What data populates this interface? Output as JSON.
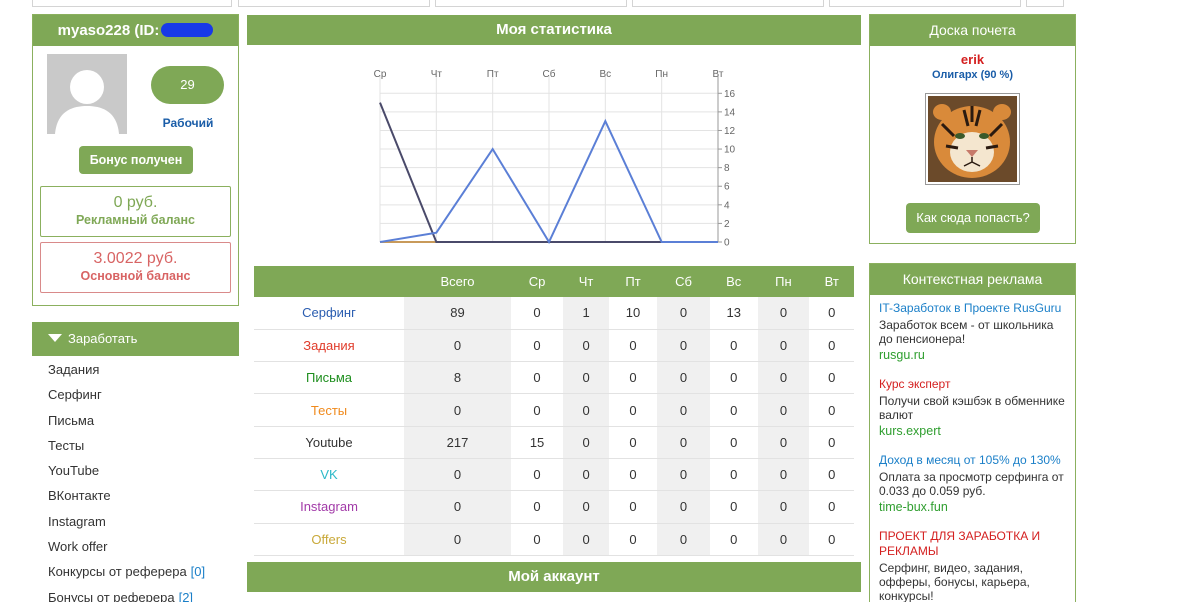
{
  "profile": {
    "username": "myaso228 (ID:",
    "level": "29",
    "level_label": "Рабочий",
    "bonus_button": "Бонус получен",
    "ad_balance_amount": "0 руб.",
    "ad_balance_label": "Рекламный баланс",
    "main_balance_amount": "3.0022 руб.",
    "main_balance_label": "Основной баланс"
  },
  "earn_menu": {
    "title": "Заработать",
    "items": [
      {
        "label": "Задания",
        "count": ""
      },
      {
        "label": "Серфинг",
        "count": ""
      },
      {
        "label": "Письма",
        "count": ""
      },
      {
        "label": "Тесты",
        "count": ""
      },
      {
        "label": "YouTube",
        "count": ""
      },
      {
        "label": "ВКонтакте",
        "count": ""
      },
      {
        "label": "Instagram",
        "count": ""
      },
      {
        "label": "Work offer",
        "count": ""
      },
      {
        "label": "Конкурсы от реферера",
        "count": "[0]"
      },
      {
        "label": "Бонусы от реферера",
        "count": "[2]"
      }
    ]
  },
  "stats_title": "Моя статистика",
  "account_title": "Мой аккаунт",
  "chart_data": {
    "type": "line",
    "categories": [
      "Ср",
      "Чт",
      "Пт",
      "Сб",
      "Вс",
      "Пн",
      "Вт"
    ],
    "y_ticks": [
      "0",
      "2",
      "4",
      "6",
      "8",
      "10",
      "12",
      "14",
      "16"
    ],
    "ylim": [
      0,
      17
    ],
    "y_axis_side": "right",
    "grid": true,
    "series": [
      {
        "color": "#5b7fd6",
        "values": [
          0,
          1,
          10,
          0,
          13,
          0,
          0
        ]
      },
      {
        "color": "#4a4a6a",
        "values": [
          15,
          0,
          0,
          0,
          0,
          0,
          0
        ]
      },
      {
        "color": "#c89a5a",
        "values": [
          0,
          0,
          0,
          0,
          0,
          0,
          0
        ]
      }
    ]
  },
  "stats_table": {
    "headers": [
      "",
      "Всего",
      "Ср",
      "Чт",
      "Пт",
      "Сб",
      "Вс",
      "Пн",
      "Вт"
    ],
    "rows": [
      {
        "name": "Серфинг",
        "color": "#2a5db0",
        "cells": [
          "89",
          "0",
          "1",
          "10",
          "0",
          "13",
          "0",
          "0"
        ]
      },
      {
        "name": "Задания",
        "color": "#e03b2a",
        "cells": [
          "0",
          "0",
          "0",
          "0",
          "0",
          "0",
          "0",
          "0"
        ]
      },
      {
        "name": "Письма",
        "color": "#1f8f1f",
        "cells": [
          "8",
          "0",
          "0",
          "0",
          "0",
          "0",
          "0",
          "0"
        ]
      },
      {
        "name": "Тесты",
        "color": "#f08a1c",
        "cells": [
          "0",
          "0",
          "0",
          "0",
          "0",
          "0",
          "0",
          "0"
        ]
      },
      {
        "name": "Youtube",
        "color": "#333333",
        "cells": [
          "217",
          "15",
          "0",
          "0",
          "0",
          "0",
          "0",
          "0"
        ]
      },
      {
        "name": "VK",
        "color": "#2cb9c8",
        "cells": [
          "0",
          "0",
          "0",
          "0",
          "0",
          "0",
          "0",
          "0"
        ]
      },
      {
        "name": "Instagram",
        "color": "#a23aa8",
        "cells": [
          "0",
          "0",
          "0",
          "0",
          "0",
          "0",
          "0",
          "0"
        ]
      },
      {
        "name": "Offers",
        "color": "#c9a93a",
        "cells": [
          "0",
          "0",
          "0",
          "0",
          "0",
          "0",
          "0",
          "0"
        ]
      }
    ]
  },
  "honor_board": {
    "title": "Доска почета",
    "user": "erik",
    "rank": "Олигарх (90 %)",
    "button": "Как сюда попасть?"
  },
  "context_ads": {
    "title": "Контекстная реклама",
    "items": [
      {
        "title": "IT-Заработок в Проекте RusGuru",
        "title_color": "#1a7fc8",
        "desc": "Заработок всем - от школьника до пенсионера!",
        "url": "rusgu.ru"
      },
      {
        "title": "Курс эксперт",
        "title_color": "#d42020",
        "desc": "Получи свой кэшбэк в обменнике валют",
        "url": "kurs.expert"
      },
      {
        "title": "Доход в месяц от 105% до 130%",
        "title_color": "#1a7fc8",
        "desc": "Оплата за просмотр серфинга от 0.033 до 0.059 руб.",
        "url": "time-bux.fun"
      },
      {
        "title": "ПРОЕКТ ДЛЯ ЗАРАБОТКА И РЕКЛАМЫ",
        "title_color": "#d42020",
        "desc": "Серфинг, видео, задания, офферы, бонусы, карьера, конкурсы!",
        "url": ""
      }
    ]
  },
  "colors": {
    "accent": "#7fa856"
  }
}
